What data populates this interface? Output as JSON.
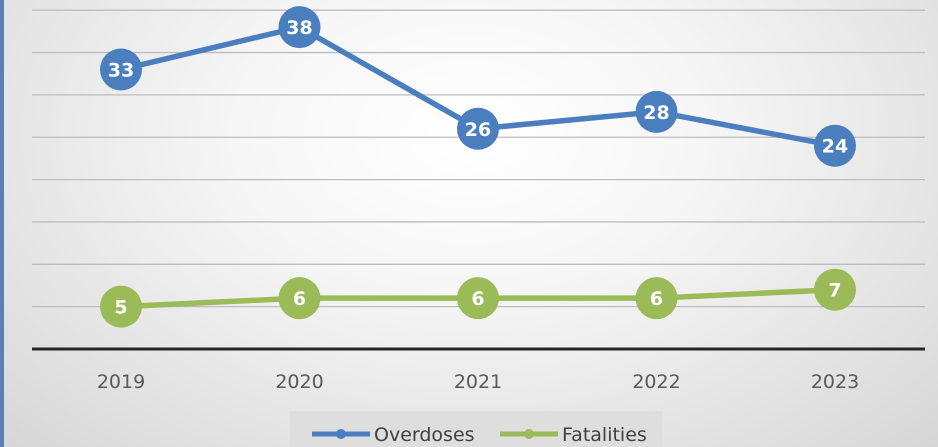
{
  "chart_data": {
    "type": "line",
    "categories": [
      "2019",
      "2020",
      "2021",
      "2022",
      "2023"
    ],
    "series": [
      {
        "name": "Overdoses",
        "values": [
          33,
          38,
          26,
          28,
          24
        ],
        "color": "#4a7ebf"
      },
      {
        "name": "Fatalities",
        "values": [
          5,
          6,
          6,
          6,
          7
        ],
        "color": "#9bbb59"
      }
    ],
    "title": "",
    "xlabel": "",
    "ylabel": "",
    "ylim": [
      0,
      40
    ],
    "grid": true,
    "legend": "bottom",
    "data_labels": true
  }
}
